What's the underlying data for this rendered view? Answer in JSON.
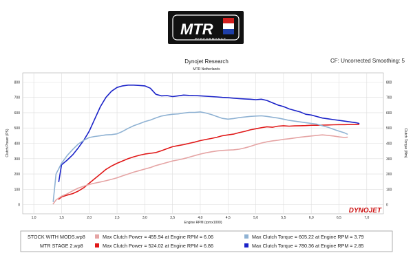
{
  "logo": {
    "text": "MTR",
    "subtext": "PERFORMANCE"
  },
  "header": {
    "title": "Dynojet Research",
    "subtitle": "MTR Netherlands",
    "settings": "CF: Uncorrected Smoothing: 5"
  },
  "brand": {
    "text": "DYNOJET"
  },
  "chart_data": {
    "type": "line",
    "title": "Dynojet Research",
    "xlabel": "Engine RPM (rpmx1000)",
    "ylabel": "Clutch Power (PS)",
    "y2label": "Clutch Torque (Nm)",
    "xlim": [
      0.8,
      7.3
    ],
    "ylim": [
      -60,
      860
    ],
    "y2lim": [
      -60,
      860
    ],
    "xticks": [
      "1,0",
      "1,5",
      "2,0",
      "2,5",
      "3,0",
      "3,5",
      "4,0",
      "4,5",
      "5,0",
      "5,5",
      "6,0",
      "6,5",
      "7,0"
    ],
    "yticks": [
      0,
      100,
      200,
      300,
      400,
      500,
      600,
      700,
      800
    ],
    "grid": true,
    "series": [
      {
        "name": "MTR STAGE 2.wp8",
        "quantity": "Clutch Torque",
        "color": "#1a22c8",
        "x": [
          1.45,
          1.5,
          1.6,
          1.7,
          1.8,
          1.9,
          2.0,
          2.1,
          2.2,
          2.3,
          2.4,
          2.5,
          2.6,
          2.7,
          2.8,
          2.9,
          3.0,
          3.1,
          3.2,
          3.3,
          3.4,
          3.5,
          3.6,
          3.7,
          3.8,
          3.9,
          4.0,
          4.1,
          4.2,
          4.3,
          4.4,
          4.5,
          4.6,
          4.7,
          4.8,
          4.9,
          5.0,
          5.1,
          5.2,
          5.3,
          5.4,
          5.5,
          5.6,
          5.7,
          5.8,
          5.9,
          6.0,
          6.1,
          6.2,
          6.3,
          6.4,
          6.5,
          6.6,
          6.7,
          6.8,
          6.86
        ],
        "y": [
          150,
          260,
          290,
          325,
          370,
          420,
          480,
          560,
          640,
          700,
          740,
          765,
          775,
          780,
          780,
          778,
          775,
          760,
          720,
          710,
          712,
          705,
          710,
          715,
          713,
          712,
          710,
          708,
          705,
          703,
          700,
          698,
          695,
          692,
          690,
          688,
          685,
          688,
          680,
          665,
          650,
          640,
          625,
          615,
          605,
          590,
          585,
          575,
          565,
          560,
          555,
          550,
          545,
          540,
          535,
          530
        ]
      },
      {
        "name": "MTR STAGE 2.wp8",
        "quantity": "Clutch Power",
        "color": "#e01818",
        "x": [
          1.45,
          1.5,
          1.6,
          1.7,
          1.8,
          1.9,
          2.0,
          2.1,
          2.2,
          2.3,
          2.4,
          2.5,
          2.6,
          2.7,
          2.8,
          2.9,
          3.0,
          3.1,
          3.2,
          3.3,
          3.4,
          3.5,
          3.6,
          3.7,
          3.8,
          3.9,
          4.0,
          4.1,
          4.2,
          4.3,
          4.4,
          4.5,
          4.6,
          4.7,
          4.8,
          4.9,
          5.0,
          5.1,
          5.2,
          5.3,
          5.4,
          5.5,
          5.6,
          5.7,
          5.8,
          5.9,
          6.0,
          6.1,
          6.2,
          6.3,
          6.4,
          6.5,
          6.6,
          6.7,
          6.8,
          6.86
        ],
        "y": [
          35,
          50,
          62,
          72,
          88,
          110,
          140,
          170,
          200,
          230,
          252,
          270,
          285,
          300,
          312,
          322,
          330,
          335,
          340,
          352,
          365,
          378,
          385,
          392,
          400,
          408,
          418,
          425,
          432,
          440,
          450,
          455,
          460,
          470,
          478,
          488,
          495,
          502,
          508,
          505,
          512,
          515,
          512,
          514,
          515,
          516,
          518,
          518,
          519,
          520,
          521,
          522,
          522,
          523,
          523,
          524
        ]
      },
      {
        "name": "STOCK WITH MODS.wp8",
        "quantity": "Clutch Torque",
        "color": "#8fb2d3",
        "x": [
          1.35,
          1.4,
          1.5,
          1.6,
          1.7,
          1.8,
          1.9,
          2.0,
          2.1,
          2.2,
          2.3,
          2.4,
          2.5,
          2.6,
          2.7,
          2.8,
          2.9,
          3.0,
          3.1,
          3.2,
          3.3,
          3.4,
          3.5,
          3.6,
          3.7,
          3.8,
          3.9,
          4.0,
          4.1,
          4.2,
          4.3,
          4.4,
          4.5,
          4.6,
          4.7,
          4.8,
          4.9,
          5.0,
          5.1,
          5.2,
          5.3,
          5.4,
          5.5,
          5.6,
          5.7,
          5.8,
          5.9,
          6.0,
          6.1,
          6.2,
          6.3,
          6.4,
          6.5,
          6.6,
          6.65
        ],
        "y": [
          20,
          200,
          270,
          320,
          360,
          395,
          420,
          438,
          445,
          450,
          455,
          457,
          462,
          478,
          498,
          515,
          528,
          542,
          552,
          566,
          578,
          585,
          590,
          592,
          598,
          602,
          602,
          605,
          598,
          588,
          575,
          563,
          558,
          562,
          568,
          572,
          576,
          578,
          580,
          576,
          570,
          565,
          558,
          550,
          545,
          540,
          535,
          530,
          525,
          515,
          505,
          492,
          480,
          468,
          460
        ]
      },
      {
        "name": "STOCK WITH MODS.wp8",
        "quantity": "Clutch Power",
        "color": "#e5a4a4",
        "x": [
          1.35,
          1.4,
          1.5,
          1.6,
          1.7,
          1.8,
          1.9,
          2.0,
          2.1,
          2.2,
          2.3,
          2.4,
          2.5,
          2.6,
          2.7,
          2.8,
          2.9,
          3.0,
          3.1,
          3.2,
          3.3,
          3.4,
          3.5,
          3.6,
          3.7,
          3.8,
          3.9,
          4.0,
          4.1,
          4.2,
          4.3,
          4.4,
          4.5,
          4.6,
          4.7,
          4.8,
          4.9,
          5.0,
          5.1,
          5.2,
          5.3,
          5.4,
          5.5,
          5.6,
          5.7,
          5.8,
          5.9,
          6.0,
          6.1,
          6.2,
          6.3,
          6.4,
          6.5,
          6.6,
          6.65
        ],
        "y": [
          5,
          30,
          55,
          70,
          90,
          108,
          120,
          132,
          140,
          148,
          156,
          165,
          175,
          188,
          200,
          212,
          222,
          232,
          242,
          255,
          265,
          275,
          285,
          292,
          300,
          310,
          320,
          330,
          338,
          345,
          350,
          354,
          356,
          358,
          362,
          370,
          380,
          392,
          402,
          410,
          416,
          420,
          426,
          430,
          435,
          440,
          444,
          448,
          452,
          455,
          452,
          448,
          442,
          438,
          440
        ]
      }
    ]
  },
  "legend": [
    {
      "run": "STOCK WITH MODS.wp8",
      "color": "#e5a4a4",
      "text": "Max Clutch Power = 455.94 at Engine RPM = 6.06"
    },
    {
      "run": "",
      "color": "#8fb2d3",
      "text": "Max Clutch Torque = 605.22 at Engine RPM = 3.79"
    },
    {
      "run": "MTR STAGE 2.wp8",
      "color": "#e01818",
      "text": "Max Clutch Power = 524.02 at Engine RPM = 6.86"
    },
    {
      "run": "",
      "color": "#1a22c8",
      "text": "Max Clutch Torque = 780.36 at Engine RPM = 2.85"
    }
  ]
}
